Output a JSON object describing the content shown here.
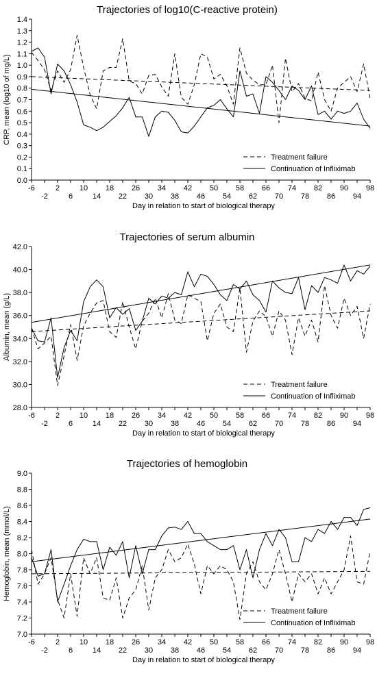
{
  "chart_data": [
    {
      "type": "line",
      "title": "Trajectories of log10(C-reactive protein)",
      "xlabel": "Day in relation to start of biological therapy",
      "ylabel": "CRP, mean (log10 of mg/L)",
      "xlim": [
        -6,
        98
      ],
      "ylim": [
        0.0,
        1.4
      ],
      "yticks": [
        "0.0",
        "0.1",
        "0.2",
        "0.3",
        "0.4",
        "0.5",
        "0.6",
        "0.7",
        "0.8",
        "0.9",
        "1.0",
        "1.1",
        "1.2",
        "1.3",
        "1.4"
      ],
      "xticks_upper": [
        "-6",
        "2",
        "10",
        "18",
        "26",
        "34",
        "42",
        "50",
        "58",
        "66",
        "74",
        "82",
        "90",
        "98"
      ],
      "xticks_lower": [
        "-2",
        "6",
        "14",
        "22",
        "30",
        "38",
        "46",
        "54",
        "62",
        "70",
        "78",
        "86",
        "94"
      ],
      "grid": false,
      "legend": "bottom-right",
      "legend_entries": [
        "Treatment failure",
        "Continuation of Infliximab"
      ],
      "series": [
        {
          "name": "Treatment failure",
          "style": "dashed",
          "x": [
            -6,
            -4,
            -2,
            0,
            2,
            4,
            6,
            8,
            10,
            12,
            14,
            16,
            18,
            20,
            22,
            24,
            26,
            28,
            30,
            32,
            34,
            36,
            38,
            40,
            42,
            44,
            46,
            48,
            50,
            52,
            54,
            56,
            58,
            60,
            62,
            64,
            66,
            68,
            70,
            72,
            74,
            76,
            78,
            80,
            82,
            84,
            86,
            88,
            90,
            92,
            94,
            96,
            98
          ],
          "y": [
            1.11,
            1.04,
            0.96,
            0.78,
            0.95,
            0.85,
            0.96,
            1.26,
            0.98,
            0.74,
            0.62,
            0.95,
            0.98,
            0.98,
            1.23,
            0.86,
            0.84,
            0.75,
            0.91,
            0.92,
            0.81,
            0.73,
            1.1,
            0.72,
            0.66,
            0.83,
            1.1,
            1.07,
            0.88,
            0.92,
            0.82,
            0.66,
            1.15,
            0.93,
            0.87,
            0.83,
            0.83,
            1.0,
            0.5,
            1.06,
            0.77,
            0.84,
            0.71,
            0.69,
            0.94,
            0.7,
            0.6,
            0.8,
            0.85,
            0.9,
            0.77,
            1.01,
            0.71
          ],
          "trend": [
            0.9,
            0.78
          ]
        },
        {
          "name": "Continuation of Infliximab",
          "style": "solid",
          "x": [
            -6,
            -4,
            -2,
            0,
            2,
            4,
            6,
            8,
            10,
            12,
            14,
            16,
            18,
            20,
            22,
            24,
            26,
            28,
            30,
            32,
            34,
            36,
            38,
            40,
            42,
            44,
            46,
            48,
            50,
            52,
            54,
            56,
            58,
            60,
            62,
            64,
            66,
            68,
            70,
            72,
            74,
            76,
            78,
            80,
            82,
            84,
            86,
            88,
            90,
            92,
            94,
            96,
            98
          ],
          "y": [
            1.12,
            1.15,
            1.07,
            0.75,
            1.01,
            0.95,
            0.83,
            0.68,
            0.48,
            0.46,
            0.43,
            0.46,
            0.51,
            0.56,
            0.63,
            0.72,
            0.55,
            0.55,
            0.38,
            0.55,
            0.6,
            0.59,
            0.52,
            0.42,
            0.41,
            0.47,
            0.55,
            0.63,
            0.65,
            0.7,
            0.62,
            0.55,
            0.95,
            0.73,
            0.75,
            0.58,
            0.9,
            0.85,
            0.78,
            0.7,
            0.82,
            0.78,
            0.7,
            0.82,
            0.57,
            0.6,
            0.53,
            0.6,
            0.58,
            0.6,
            0.67,
            0.53,
            0.45
          ],
          "trend": [
            0.79,
            0.47
          ]
        }
      ]
    },
    {
      "type": "line",
      "title": "Trajectories of serum albumin",
      "xlabel": "Day in relation to start of biological therapy",
      "ylabel": "Albumin, mean (g/L)",
      "xlim": [
        -6,
        98
      ],
      "ylim": [
        28.0,
        42.0
      ],
      "yticks": [
        "28.0",
        "30.0",
        "32.0",
        "34.0",
        "36.0",
        "38.0",
        "40.0",
        "42.0"
      ],
      "xticks_upper": [
        "-6",
        "2",
        "10",
        "18",
        "26",
        "34",
        "42",
        "50",
        "58",
        "66",
        "74",
        "82",
        "90",
        "98"
      ],
      "xticks_lower": [
        "-2",
        "6",
        "14",
        "22",
        "30",
        "38",
        "46",
        "54",
        "62",
        "70",
        "78",
        "86",
        "94"
      ],
      "grid": false,
      "legend": "bottom-right",
      "legend_entries": [
        "Treatment failure",
        "Continuation of Infliximab"
      ],
      "series": [
        {
          "name": "Treatment failure",
          "style": "dashed",
          "x": [
            -6,
            -4,
            -2,
            0,
            2,
            4,
            6,
            8,
            10,
            12,
            14,
            16,
            18,
            20,
            22,
            24,
            26,
            28,
            30,
            32,
            34,
            36,
            38,
            40,
            42,
            44,
            46,
            48,
            50,
            52,
            54,
            56,
            58,
            60,
            62,
            64,
            66,
            68,
            70,
            72,
            74,
            76,
            78,
            80,
            82,
            84,
            86,
            88,
            90,
            92,
            94,
            96,
            98
          ],
          "y": [
            34.9,
            33.1,
            33.6,
            34.2,
            29.9,
            32.5,
            35.2,
            32.1,
            35.1,
            36.2,
            37.1,
            37.3,
            34.6,
            34.1,
            37.2,
            35.0,
            33.1,
            35.5,
            36.2,
            37.5,
            35.8,
            37.9,
            35.6,
            35.3,
            37.8,
            37.5,
            37.2,
            33.8,
            36.2,
            37.0,
            35.0,
            34.6,
            38.4,
            32.8,
            35.5,
            36.4,
            35.9,
            34.2,
            36.4,
            35.6,
            32.6,
            35.8,
            34.2,
            35.6,
            33.7,
            38.6,
            36.0,
            34.9,
            37.5,
            36.0,
            36.8,
            34.0,
            37.0
          ],
          "trend": [
            34.6,
            36.4
          ]
        },
        {
          "name": "Continuation of Infliximab",
          "style": "solid",
          "x": [
            -6,
            -4,
            -2,
            0,
            2,
            4,
            6,
            8,
            10,
            12,
            14,
            16,
            18,
            20,
            22,
            24,
            26,
            28,
            30,
            32,
            34,
            36,
            38,
            40,
            42,
            44,
            46,
            48,
            50,
            52,
            54,
            56,
            58,
            60,
            62,
            64,
            66,
            68,
            70,
            72,
            74,
            76,
            78,
            80,
            82,
            84,
            86,
            88,
            90,
            92,
            94,
            96,
            98
          ],
          "y": [
            34.9,
            33.8,
            33.7,
            35.8,
            30.6,
            33.2,
            34.7,
            33.8,
            37.2,
            38.5,
            39.1,
            38.5,
            35.8,
            36.7,
            36.1,
            36.6,
            34.7,
            35.5,
            37.5,
            37.0,
            37.7,
            37.5,
            38.0,
            37.8,
            39.8,
            38.5,
            39.6,
            39.4,
            38.7,
            37.8,
            37.3,
            38.7,
            38.3,
            39.0,
            37.8,
            37.3,
            36.3,
            39.0,
            38.4,
            38.0,
            37.9,
            39.3,
            36.5,
            38.6,
            38.0,
            39.3,
            39.1,
            38.8,
            40.4,
            39.0,
            39.9,
            39.6,
            40.3
          ],
          "trend": [
            35.4,
            40.4
          ]
        }
      ]
    },
    {
      "type": "line",
      "title": "Trajectories of hemoglobin",
      "xlabel": "Day in relation to start of biological therapy",
      "ylabel": "Hemoglobin, mean (mmol/L)",
      "xlim": [
        -6,
        98
      ],
      "ylim": [
        7.0,
        9.0
      ],
      "yticks": [
        "7.0",
        "7.2",
        "7.4",
        "7.6",
        "7.8",
        "8.0",
        "8.2",
        "8.4",
        "8.6",
        "8.8",
        "9.0"
      ],
      "xticks_upper": [
        "-6",
        "2",
        "10",
        "18",
        "26",
        "34",
        "42",
        "50",
        "58",
        "66",
        "74",
        "82",
        "90",
        "98"
      ],
      "xticks_lower": [
        "-2",
        "6",
        "14",
        "22",
        "30",
        "38",
        "46",
        "54",
        "62",
        "70",
        "78",
        "86",
        "94"
      ],
      "grid": false,
      "legend": "bottom-right",
      "legend_entries": [
        "Treatment failure",
        "Continuation of Infliximab"
      ],
      "series": [
        {
          "name": "Treatment failure",
          "style": "dashed",
          "x": [
            -6,
            -4,
            -2,
            0,
            2,
            4,
            6,
            8,
            10,
            12,
            14,
            16,
            18,
            20,
            22,
            24,
            26,
            28,
            30,
            32,
            34,
            36,
            38,
            40,
            42,
            44,
            46,
            48,
            50,
            52,
            54,
            56,
            58,
            60,
            62,
            64,
            66,
            68,
            70,
            72,
            74,
            76,
            78,
            80,
            82,
            84,
            86,
            88,
            90,
            92,
            94,
            96,
            98
          ],
          "y": [
            8.05,
            7.62,
            7.75,
            7.95,
            7.43,
            7.2,
            7.75,
            7.22,
            7.95,
            7.75,
            7.95,
            7.45,
            7.42,
            7.7,
            7.2,
            7.45,
            7.55,
            7.85,
            7.3,
            7.7,
            7.8,
            8.05,
            7.9,
            7.95,
            8.12,
            7.87,
            7.5,
            7.85,
            7.75,
            7.85,
            7.8,
            7.65,
            7.18,
            7.75,
            7.9,
            7.65,
            7.55,
            7.75,
            8.05,
            7.75,
            7.4,
            7.75,
            7.65,
            7.75,
            7.5,
            7.7,
            7.5,
            7.65,
            7.8,
            8.22,
            7.65,
            7.62,
            8.03
          ],
          "trend": [
            7.75,
            7.78
          ]
        },
        {
          "name": "Continuation of Infliximab",
          "style": "solid",
          "x": [
            -6,
            -4,
            -2,
            0,
            2,
            4,
            6,
            8,
            10,
            12,
            14,
            16,
            18,
            20,
            22,
            24,
            26,
            28,
            30,
            32,
            34,
            36,
            38,
            40,
            42,
            44,
            46,
            48,
            50,
            52,
            54,
            56,
            58,
            60,
            62,
            64,
            66,
            68,
            70,
            72,
            74,
            76,
            78,
            80,
            82,
            84,
            86,
            88,
            90,
            92,
            94,
            96,
            98
          ],
          "y": [
            7.95,
            7.72,
            7.75,
            8.05,
            7.4,
            7.62,
            7.85,
            8.05,
            8.18,
            8.15,
            8.15,
            7.8,
            8.08,
            7.98,
            8.15,
            7.7,
            8.1,
            7.75,
            8.05,
            8.05,
            8.22,
            8.32,
            8.33,
            8.3,
            8.4,
            8.25,
            8.25,
            8.15,
            8.1,
            8.05,
            8.05,
            8.1,
            7.8,
            8.05,
            7.7,
            8.05,
            8.25,
            8.1,
            8.3,
            8.2,
            7.9,
            7.9,
            8.2,
            8.15,
            8.3,
            8.25,
            8.4,
            8.3,
            8.45,
            8.45,
            8.35,
            8.55,
            8.57
          ],
          "trend": [
            7.9,
            8.43
          ]
        }
      ]
    }
  ]
}
